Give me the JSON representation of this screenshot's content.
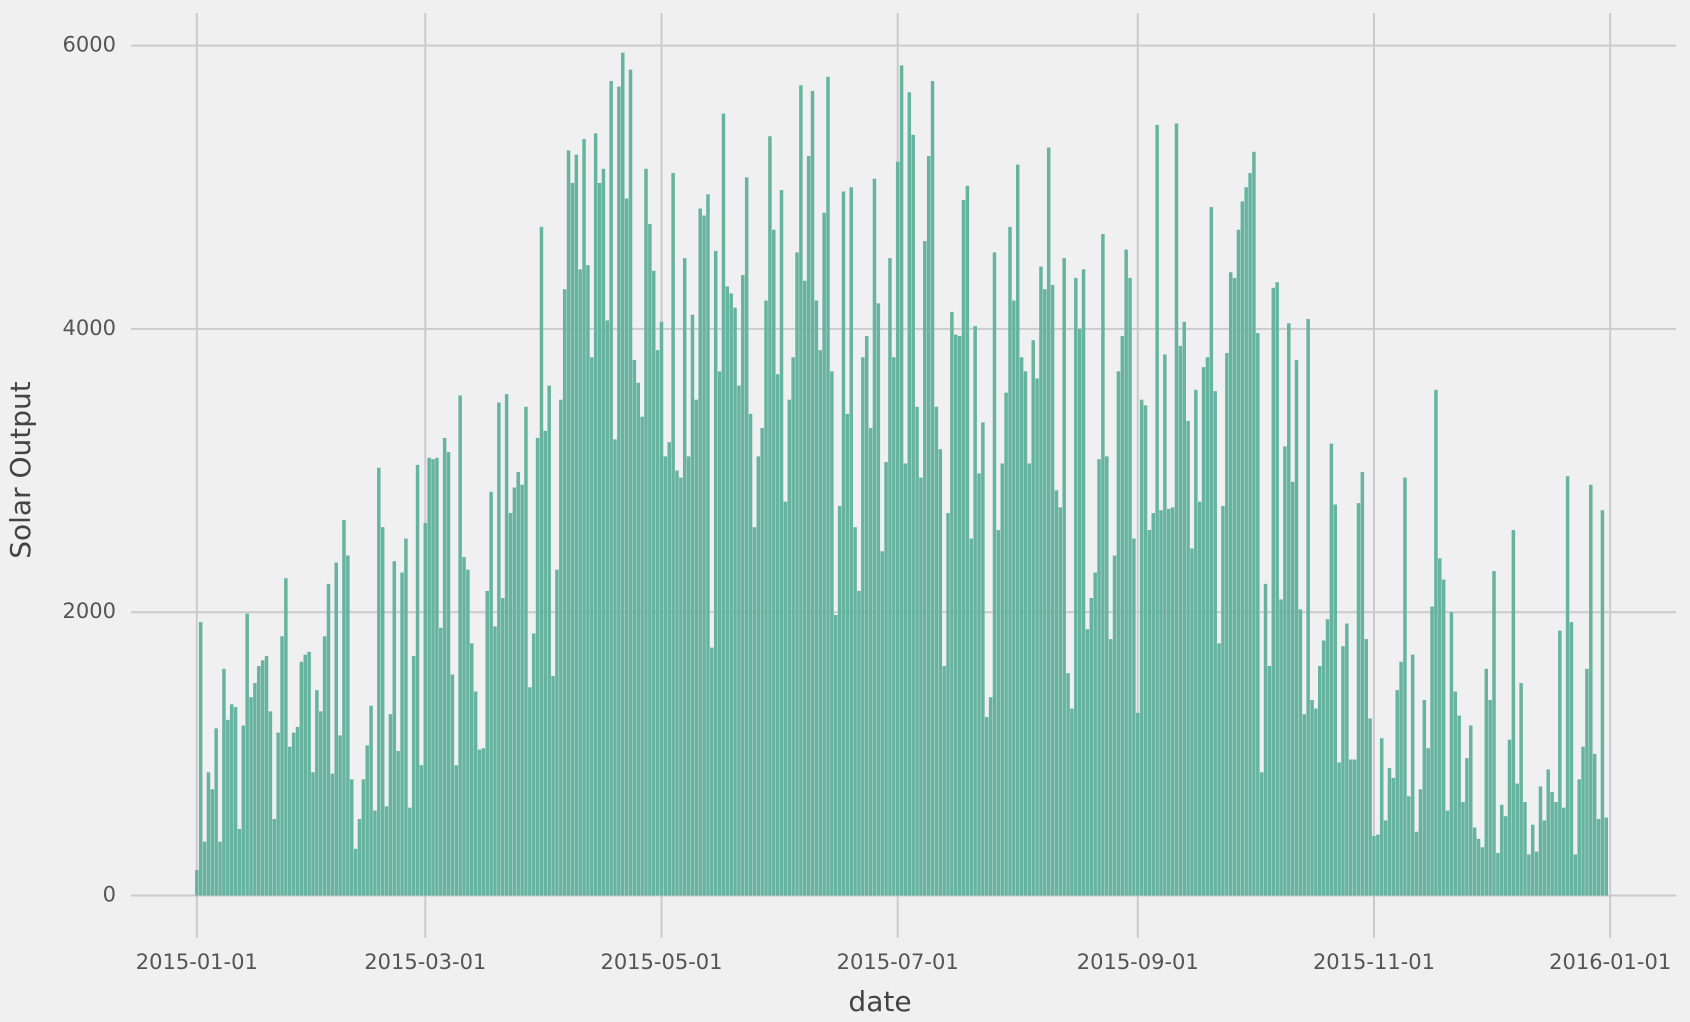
{
  "chart_data": {
    "type": "bar",
    "xlabel": "date",
    "ylabel": "Solar Output",
    "color": "#66b3a0",
    "grid": true,
    "xlim": [
      "2014-12-15",
      "2016-01-18"
    ],
    "ylim": [
      -300,
      6230
    ],
    "xticks": [
      "2015-01-01",
      "2015-03-01",
      "2015-05-01",
      "2015-07-01",
      "2015-09-01",
      "2015-11-01",
      "2016-01-01"
    ],
    "yticks": [
      0,
      2000,
      4000,
      6000
    ],
    "x": [
      "2015-01-01",
      "2015-01-02",
      "2015-01-03",
      "2015-01-04",
      "2015-01-05",
      "2015-01-06",
      "2015-01-07",
      "2015-01-08",
      "2015-01-09",
      "2015-01-10",
      "2015-01-11",
      "2015-01-12",
      "2015-01-13",
      "2015-01-14",
      "2015-01-15",
      "2015-01-16",
      "2015-01-17",
      "2015-01-18",
      "2015-01-19",
      "2015-01-20",
      "2015-01-21",
      "2015-01-22",
      "2015-01-23",
      "2015-01-24",
      "2015-01-25",
      "2015-01-26",
      "2015-01-27",
      "2015-01-28",
      "2015-01-29",
      "2015-01-30",
      "2015-01-31",
      "2015-02-01",
      "2015-02-02",
      "2015-02-03",
      "2015-02-04",
      "2015-02-05",
      "2015-02-06",
      "2015-02-07",
      "2015-02-08",
      "2015-02-09",
      "2015-02-10",
      "2015-02-11",
      "2015-02-12",
      "2015-02-13",
      "2015-02-14",
      "2015-02-15",
      "2015-02-16",
      "2015-02-17",
      "2015-02-18",
      "2015-02-19",
      "2015-02-20",
      "2015-02-21",
      "2015-02-22",
      "2015-02-23",
      "2015-02-24",
      "2015-02-25",
      "2015-02-26",
      "2015-02-27",
      "2015-02-28",
      "2015-03-01",
      "2015-03-02",
      "2015-03-03",
      "2015-03-04",
      "2015-03-05",
      "2015-03-06",
      "2015-03-07",
      "2015-03-08",
      "2015-03-09",
      "2015-03-10",
      "2015-03-11",
      "2015-03-12",
      "2015-03-13",
      "2015-03-14",
      "2015-03-15",
      "2015-03-16",
      "2015-03-17",
      "2015-03-18",
      "2015-03-19",
      "2015-03-20",
      "2015-03-21",
      "2015-03-22",
      "2015-03-23",
      "2015-03-24",
      "2015-03-25",
      "2015-03-26",
      "2015-03-27",
      "2015-03-28",
      "2015-03-29",
      "2015-03-30",
      "2015-03-31",
      "2015-04-01",
      "2015-04-02",
      "2015-04-03",
      "2015-04-04",
      "2015-04-05",
      "2015-04-06",
      "2015-04-07",
      "2015-04-08",
      "2015-04-09",
      "2015-04-10",
      "2015-04-11",
      "2015-04-12",
      "2015-04-13",
      "2015-04-14",
      "2015-04-15",
      "2015-04-16",
      "2015-04-17",
      "2015-04-18",
      "2015-04-19",
      "2015-04-20",
      "2015-04-21",
      "2015-04-22",
      "2015-04-23",
      "2015-04-24",
      "2015-04-25",
      "2015-04-26",
      "2015-04-27",
      "2015-04-28",
      "2015-04-29",
      "2015-04-30",
      "2015-05-01",
      "2015-05-02",
      "2015-05-03",
      "2015-05-04",
      "2015-05-05",
      "2015-05-06",
      "2015-05-07",
      "2015-05-08",
      "2015-05-09",
      "2015-05-10",
      "2015-05-11",
      "2015-05-12",
      "2015-05-13",
      "2015-05-14",
      "2015-05-15",
      "2015-05-16",
      "2015-05-17",
      "2015-05-18",
      "2015-05-19",
      "2015-05-20",
      "2015-05-21",
      "2015-05-22",
      "2015-05-23",
      "2015-05-24",
      "2015-05-25",
      "2015-05-26",
      "2015-05-27",
      "2015-05-28",
      "2015-05-29",
      "2015-05-30",
      "2015-05-31",
      "2015-06-01",
      "2015-06-02",
      "2015-06-03",
      "2015-06-04",
      "2015-06-05",
      "2015-06-06",
      "2015-06-07",
      "2015-06-08",
      "2015-06-09",
      "2015-06-10",
      "2015-06-11",
      "2015-06-12",
      "2015-06-13",
      "2015-06-14",
      "2015-06-15",
      "2015-06-16",
      "2015-06-17",
      "2015-06-18",
      "2015-06-19",
      "2015-06-20",
      "2015-06-21",
      "2015-06-22",
      "2015-06-23",
      "2015-06-24",
      "2015-06-25",
      "2015-06-26",
      "2015-06-27",
      "2015-06-28",
      "2015-06-29",
      "2015-06-30",
      "2015-07-01",
      "2015-07-02",
      "2015-07-03",
      "2015-07-04",
      "2015-07-05",
      "2015-07-06",
      "2015-07-07",
      "2015-07-08",
      "2015-07-09",
      "2015-07-10",
      "2015-07-11",
      "2015-07-12",
      "2015-07-13",
      "2015-07-14",
      "2015-07-15",
      "2015-07-16",
      "2015-07-17",
      "2015-07-18",
      "2015-07-19",
      "2015-07-20",
      "2015-07-21",
      "2015-07-22",
      "2015-07-23",
      "2015-07-24",
      "2015-07-25",
      "2015-07-26",
      "2015-07-27",
      "2015-07-28",
      "2015-07-29",
      "2015-07-30",
      "2015-07-31",
      "2015-08-01",
      "2015-08-02",
      "2015-08-03",
      "2015-08-04",
      "2015-08-05",
      "2015-08-06",
      "2015-08-07",
      "2015-08-08",
      "2015-08-09",
      "2015-08-10",
      "2015-08-11",
      "2015-08-12",
      "2015-08-13",
      "2015-08-14",
      "2015-08-15",
      "2015-08-16",
      "2015-08-17",
      "2015-08-18",
      "2015-08-19",
      "2015-08-20",
      "2015-08-21",
      "2015-08-22",
      "2015-08-23",
      "2015-08-24",
      "2015-08-25",
      "2015-08-26",
      "2015-08-27",
      "2015-08-28",
      "2015-08-29",
      "2015-08-30",
      "2015-08-31",
      "2015-09-01",
      "2015-09-02",
      "2015-09-03",
      "2015-09-04",
      "2015-09-05",
      "2015-09-06",
      "2015-09-07",
      "2015-09-08",
      "2015-09-09",
      "2015-09-10",
      "2015-09-11",
      "2015-09-12",
      "2015-09-13",
      "2015-09-14",
      "2015-09-15",
      "2015-09-16",
      "2015-09-17",
      "2015-09-18",
      "2015-09-19",
      "2015-09-20",
      "2015-09-21",
      "2015-09-22",
      "2015-09-23",
      "2015-09-24",
      "2015-09-25",
      "2015-09-26",
      "2015-09-27",
      "2015-09-28",
      "2015-09-29",
      "2015-09-30",
      "2015-10-01",
      "2015-10-02",
      "2015-10-03",
      "2015-10-04",
      "2015-10-05",
      "2015-10-06",
      "2015-10-07",
      "2015-10-08",
      "2015-10-09",
      "2015-10-10",
      "2015-10-11",
      "2015-10-12",
      "2015-10-13",
      "2015-10-14",
      "2015-10-15",
      "2015-10-16",
      "2015-10-17",
      "2015-10-18",
      "2015-10-19",
      "2015-10-20",
      "2015-10-21",
      "2015-10-22",
      "2015-10-23",
      "2015-10-24",
      "2015-10-25",
      "2015-10-26",
      "2015-10-27",
      "2015-10-28",
      "2015-10-29",
      "2015-10-30",
      "2015-10-31",
      "2015-11-01",
      "2015-11-02",
      "2015-11-03",
      "2015-11-04",
      "2015-11-05",
      "2015-11-06",
      "2015-11-07",
      "2015-11-08",
      "2015-11-09",
      "2015-11-10",
      "2015-11-11",
      "2015-11-12",
      "2015-11-13",
      "2015-11-14",
      "2015-11-15",
      "2015-11-16",
      "2015-11-17",
      "2015-11-18",
      "2015-11-19",
      "2015-11-20",
      "2015-11-21",
      "2015-11-22",
      "2015-11-23",
      "2015-11-24",
      "2015-11-25",
      "2015-11-26",
      "2015-11-27",
      "2015-11-28",
      "2015-11-29",
      "2015-11-30",
      "2015-12-01",
      "2015-12-02",
      "2015-12-03",
      "2015-12-04",
      "2015-12-05",
      "2015-12-06",
      "2015-12-07",
      "2015-12-08",
      "2015-12-09",
      "2015-12-10",
      "2015-12-11",
      "2015-12-12",
      "2015-12-13",
      "2015-12-14",
      "2015-12-15",
      "2015-12-16",
      "2015-12-17",
      "2015-12-18",
      "2015-12-19",
      "2015-12-20",
      "2015-12-21",
      "2015-12-22",
      "2015-12-23",
      "2015-12-24",
      "2015-12-25",
      "2015-12-26",
      "2015-12-27",
      "2015-12-28",
      "2015-12-29",
      "2015-12-30",
      "2015-12-31"
    ],
    "values": [
      180,
      1930,
      380,
      870,
      750,
      1180,
      380,
      1600,
      1240,
      1350,
      1330,
      470,
      1200,
      1990,
      1400,
      1500,
      1620,
      1660,
      1690,
      1300,
      540,
      1150,
      1830,
      2240,
      1050,
      1150,
      1190,
      1650,
      1700,
      1720,
      870,
      1450,
      1300,
      1830,
      2200,
      860,
      2350,
      1130,
      2650,
      2400,
      820,
      330,
      540,
      820,
      1060,
      1340,
      600,
      3020,
      2600,
      630,
      1280,
      2360,
      1020,
      2280,
      2520,
      620,
      1690,
      3040,
      920,
      2630,
      3090,
      3080,
      3090,
      1890,
      3230,
      3130,
      1560,
      920,
      3530,
      2390,
      2300,
      1780,
      1440,
      1030,
      1040,
      2150,
      2850,
      1900,
      3480,
      2100,
      3540,
      2700,
      2880,
      2990,
      2900,
      3450,
      1470,
      1850,
      3230,
      4720,
      3280,
      3600,
      1550,
      2300,
      3500,
      4280,
      5260,
      5030,
      5230,
      4420,
      5340,
      4450,
      3800,
      5380,
      5030,
      5130,
      4060,
      5750,
      3220,
      5710,
      5950,
      4920,
      5830,
      3780,
      3620,
      3380,
      5130,
      4740,
      4410,
      3850,
      4050,
      3100,
      3200,
      5100,
      3000,
      2950,
      4500,
      3100,
      4100,
      3500,
      4850,
      4800,
      4950,
      1750,
      4550,
      3700,
      5520,
      4300,
      4250,
      4150,
      3600,
      4380,
      5070,
      3400,
      2600,
      3100,
      3300,
      4200,
      5360,
      4700,
      3680,
      4980,
      2780,
      3500,
      3800,
      4540,
      5720,
      4340,
      5220,
      5680,
      4200,
      3850,
      4820,
      5780,
      3700,
      1980,
      2750,
      4970,
      3400,
      5000,
      2600,
      2150,
      3800,
      3950,
      3300,
      5060,
      4180,
      2430,
      3060,
      4500,
      3800,
      5180,
      5860,
      3050,
      5670,
      5370,
      3450,
      2950,
      4620,
      5220,
      5750,
      3450,
      3150,
      1620,
      2700,
      4120,
      3960,
      3950,
      4910,
      5010,
      2520,
      4020,
      2980,
      3340,
      1260,
      1400,
      4540,
      2580,
      3050,
      3550,
      4720,
      4200,
      5160,
      3800,
      3700,
      3050,
      3920,
      3650,
      4440,
      4280,
      5280,
      4310,
      2860,
      2740,
      4500,
      1570,
      1320,
      4360,
      4000,
      4420,
      1880,
      2100,
      2280,
      3080,
      4670,
      3100,
      1810,
      2400,
      3700,
      3950,
      4560,
      4360,
      2520,
      1290,
      3500,
      3460,
      2580,
      2700,
      5440,
      2720,
      3820,
      2730,
      2740,
      5450,
      3880,
      4050,
      3350,
      2450,
      3570,
      2780,
      3730,
      3800,
      4860,
      3560,
      1780,
      2750,
      3830,
      4400,
      4360,
      4700,
      4900,
      5000,
      5100,
      5250,
      3970,
      870,
      2200,
      1620,
      4290,
      4330,
      2090,
      3170,
      4040,
      2920,
      3780,
      2020,
      1280,
      4070,
      1380,
      1320,
      1620,
      1800,
      1950,
      3190,
      2760,
      940,
      1760,
      1920,
      960,
      960,
      2770,
      2990,
      1810,
      1250,
      420,
      430,
      1110,
      530,
      900,
      830,
      1450,
      1650,
      2950,
      700,
      1700,
      450,
      750,
      1380,
      1040,
      2040,
      3570,
      2380,
      2230,
      600,
      2000,
      1440,
      1270,
      660,
      970,
      1200,
      480,
      400,
      340,
      1600,
      1380,
      2290,
      300,
      640,
      560,
      1100,
      2580,
      790,
      1500,
      660,
      290,
      500,
      310,
      770,
      530,
      890,
      730,
      660,
      1870,
      620,
      2960,
      1930,
      290,
      820,
      1050,
      1600,
      2900,
      1000,
      540,
      2720,
      550
    ]
  }
}
